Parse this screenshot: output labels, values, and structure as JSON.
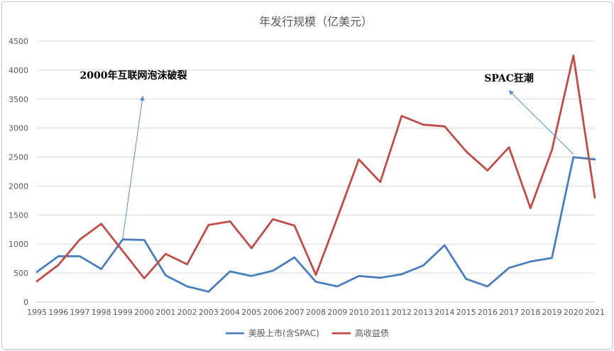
{
  "chart_data": {
    "type": "line",
    "title": "年发行规模（亿美元）",
    "xlabel": "",
    "ylabel": "",
    "ylim": [
      0,
      4500
    ],
    "yticks": [
      0,
      500,
      1000,
      1500,
      2000,
      2500,
      3000,
      3500,
      4000,
      4500
    ],
    "categories": [
      "1995",
      "1996",
      "1997",
      "1998",
      "1999",
      "2000",
      "2001",
      "2002",
      "2003",
      "2004",
      "2005",
      "2006",
      "2007",
      "2008",
      "2009",
      "2010",
      "2011",
      "2012",
      "2013",
      "2014",
      "2015",
      "2016",
      "2017",
      "2018",
      "2019",
      "2020",
      "2021"
    ],
    "series": [
      {
        "name": "美股上市(含SPAC)",
        "color": "#4A7EBB",
        "values": [
          520,
          790,
          790,
          570,
          1080,
          1070,
          460,
          270,
          180,
          530,
          450,
          540,
          770,
          350,
          270,
          450,
          420,
          480,
          630,
          980,
          400,
          270,
          590,
          700,
          760,
          2500,
          2460
        ]
      },
      {
        "name": "高收益债",
        "color": "#BE4B48",
        "values": [
          360,
          640,
          1080,
          1350,
          880,
          410,
          830,
          650,
          1330,
          1390,
          930,
          1430,
          1320,
          470,
          1450,
          2460,
          2070,
          3210,
          3060,
          3030,
          2600,
          2270,
          2670,
          1620,
          2620,
          4250,
          1800
        ]
      }
    ],
    "annotations": [
      {
        "text": "2000年互联网泡沫破裂",
        "arrow_from_x": "1999",
        "arrow_from_y": 1100,
        "arrow_to_x": "2000",
        "arrow_to_y": 3550,
        "text_x": "1999.5",
        "text_y": 3850
      },
      {
        "text": "SPAC狂潮",
        "arrow_from_x": "2020",
        "arrow_from_y": 2550,
        "arrow_to_x": "2017",
        "arrow_to_y": 3650,
        "text_x": "2017",
        "text_y": 3800
      }
    ],
    "legend": "bottom",
    "grid": true
  }
}
